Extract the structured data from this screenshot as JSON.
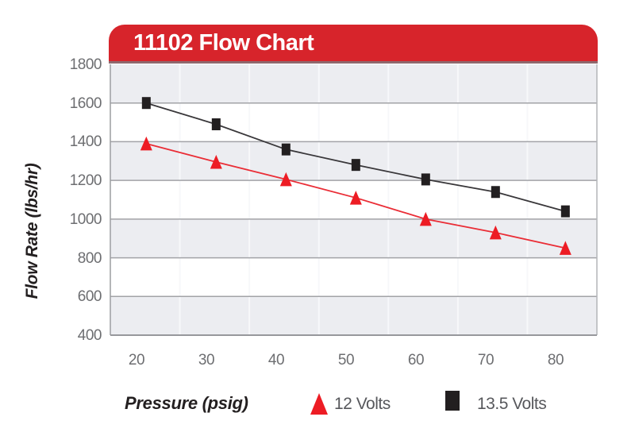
{
  "title": "11102 Flow Chart",
  "colors": {
    "banner_red": "#d7242b",
    "banner_edge_dark_red": "#8e686d",
    "series_red": "#ed1c24",
    "series_black": "#221f20",
    "band_gray": "#ecedf1",
    "gridline_gray": "#a2a3a7",
    "tick_text_gray": "#6d6e71",
    "legend_text_gray": "#57585c"
  },
  "chart_data": {
    "type": "line",
    "title": "11102 Flow Chart",
    "xlabel": "Pressure (psig)",
    "ylabel": "Flow Rate (lbs/hr)",
    "x": [
      21,
      31,
      41,
      51,
      61,
      71,
      81
    ],
    "series": [
      {
        "name": "13.5 Volts",
        "marker": "square",
        "color": "#221f20",
        "line_color": "#39373a",
        "values": [
          1600,
          1490,
          1360,
          1280,
          1205,
          1140,
          1040
        ]
      },
      {
        "name": "12 Volts",
        "marker": "triangle",
        "color": "#ed1c24",
        "line_color": "#ea2d36",
        "values": [
          1390,
          1295,
          1205,
          1110,
          1000,
          930,
          850
        ]
      }
    ],
    "x_ticks": [
      20,
      30,
      40,
      50,
      60,
      70,
      80
    ],
    "y_ticks": [
      1800,
      1600,
      1400,
      1200,
      1000,
      800,
      600,
      400
    ],
    "xlim": [
      16,
      86
    ],
    "ylim": [
      400,
      1800
    ],
    "grid": "horizontal major gridlines with alternating gray/white bands; faint white vertical gridlines",
    "legend_position": "bottom"
  },
  "legend": {
    "items": [
      {
        "label": "12 Volts",
        "marker": "red-triangle"
      },
      {
        "label": "13.5 Volts",
        "marker": "black-square"
      }
    ]
  }
}
